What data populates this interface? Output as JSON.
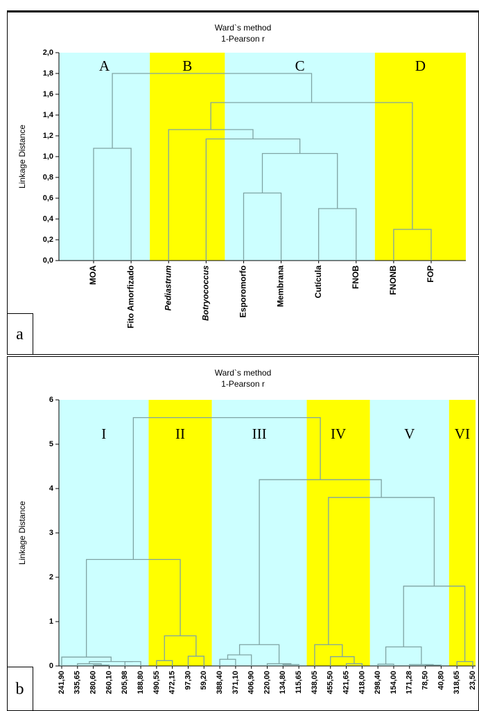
{
  "chart_data": [
    {
      "type": "dendrogram",
      "title": "Ward`s method",
      "subtitle": "1-Pearson r",
      "ylabel": "Linkage Distance",
      "panel_label": "a",
      "leaves": [
        "MOA",
        "Fito Amorfizado",
        "Pediastrum",
        "Botryococcus",
        "Esporomorfo",
        "Membrana",
        "Cutícula",
        "FNOB",
        "FNONB",
        "FOP"
      ],
      "italic_leaves": [
        2,
        3
      ],
      "merges": [
        {
          "left": 0,
          "right": 1,
          "height": 1.08
        },
        {
          "left": 4,
          "right": 5,
          "height": 0.65
        },
        {
          "left": 6,
          "right": 7,
          "height": 0.5
        },
        {
          "left": 11,
          "right": 12,
          "height": 1.03
        },
        {
          "left": 3,
          "right": 13,
          "height": 1.17
        },
        {
          "left": 2,
          "right": 14,
          "height": 1.26
        },
        {
          "left": 8,
          "right": 9,
          "height": 0.3
        },
        {
          "left": 15,
          "right": 16,
          "height": 1.52
        },
        {
          "left": 10,
          "right": 17,
          "height": 1.8
        }
      ],
      "groups": [
        {
          "label": "A",
          "color": "#ccffff",
          "span": [
            0,
            1
          ]
        },
        {
          "label": "B",
          "color": "#ffff00",
          "span": [
            2,
            3
          ]
        },
        {
          "label": "C",
          "color": "#ccffff",
          "span": [
            4,
            7
          ]
        },
        {
          "label": "D",
          "color": "#ffff00",
          "span": [
            8,
            9
          ]
        }
      ],
      "link_color": "#7fa3a3",
      "ylim": [
        0,
        2
      ],
      "yticks": [
        {
          "value": 0,
          "label": "0,0"
        },
        {
          "value": 0.2,
          "label": "0,2"
        },
        {
          "value": 0.4,
          "label": "0,4"
        },
        {
          "value": 0.6,
          "label": "0,6"
        },
        {
          "value": 0.8,
          "label": "0,8"
        },
        {
          "value": 1,
          "label": "1,0"
        },
        {
          "value": 1.2,
          "label": "1,2"
        },
        {
          "value": 1.4,
          "label": "1,4"
        },
        {
          "value": 1.6,
          "label": "1,6"
        },
        {
          "value": 1.8,
          "label": "1,8"
        },
        {
          "value": 2,
          "label": "2,0"
        }
      ]
    },
    {
      "type": "dendrogram",
      "title": "Ward`s method",
      "subtitle": "1-Pearson r",
      "ylabel": "Linkage Distance",
      "panel_label": "b",
      "leaves": [
        "241,90",
        "335,65",
        "280,60",
        "260,10",
        "205,98",
        "188,80",
        "490,55",
        "472,15",
        "97,30",
        "59,20",
        "388,40",
        "371,10",
        "406,90",
        "220,00",
        "134,80",
        "115,65",
        "438,05",
        "455,50",
        "421,65",
        "418,00",
        "298,40",
        "154,00",
        "171,28",
        "78,50",
        "40,80",
        "318,65",
        "23,50"
      ],
      "merges": [
        {
          "left": 2,
          "right": 3,
          "height": 0.02
        },
        {
          "left": 1,
          "right": 27,
          "height": 0.05
        },
        {
          "left": 4,
          "right": 5,
          "height": 0.1
        },
        {
          "left": 28,
          "right": 29,
          "height": 0.1
        },
        {
          "left": 0,
          "right": 30,
          "height": 0.2
        },
        {
          "left": 6,
          "right": 7,
          "height": 0.12
        },
        {
          "left": 8,
          "right": 9,
          "height": 0.22
        },
        {
          "left": 32,
          "right": 33,
          "height": 0.68
        },
        {
          "left": 31,
          "right": 34,
          "height": 2.4
        },
        {
          "left": 10,
          "right": 11,
          "height": 0.15
        },
        {
          "left": 36,
          "right": 12,
          "height": 0.25
        },
        {
          "left": 14,
          "right": 15,
          "height": 0.03
        },
        {
          "left": 13,
          "right": 38,
          "height": 0.05
        },
        {
          "left": 37,
          "right": 39,
          "height": 0.48
        },
        {
          "left": 18,
          "right": 19,
          "height": 0.05
        },
        {
          "left": 17,
          "right": 41,
          "height": 0.21
        },
        {
          "left": 16,
          "right": 42,
          "height": 0.48
        },
        {
          "left": 20,
          "right": 21,
          "height": 0.04
        },
        {
          "left": 23,
          "right": 24,
          "height": 0.02
        },
        {
          "left": 22,
          "right": 45,
          "height": 0.03
        },
        {
          "left": 44,
          "right": 46,
          "height": 0.43
        },
        {
          "left": 25,
          "right": 26,
          "height": 0.1
        },
        {
          "left": 47,
          "right": 48,
          "height": 1.8
        },
        {
          "left": 43,
          "right": 49,
          "height": 3.8
        },
        {
          "left": 40,
          "right": 50,
          "height": 4.2
        },
        {
          "left": 35,
          "right": 51,
          "height": 5.6
        }
      ],
      "groups": [
        {
          "label": "I",
          "color": "#ccffff",
          "span": [
            0,
            5
          ]
        },
        {
          "label": "II",
          "color": "#ffff00",
          "span": [
            6,
            9
          ]
        },
        {
          "label": "III",
          "color": "#ccffff",
          "span": [
            10,
            15
          ]
        },
        {
          "label": "IV",
          "color": "#ffff00",
          "span": [
            16,
            19
          ]
        },
        {
          "label": "V",
          "color": "#ccffff",
          "span": [
            20,
            24
          ]
        },
        {
          "label": "VI",
          "color": "#ffff00",
          "span": [
            25,
            26
          ]
        }
      ],
      "link_color": "#7fa3a3",
      "ylim": [
        0,
        6
      ],
      "yticks": [
        0,
        1,
        2,
        3,
        4,
        5,
        6
      ]
    }
  ]
}
